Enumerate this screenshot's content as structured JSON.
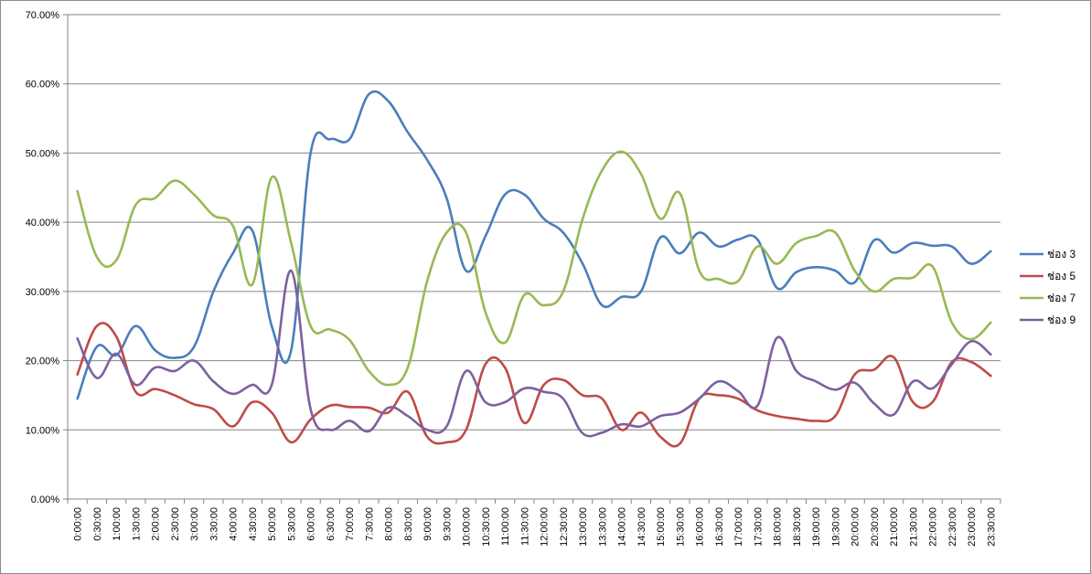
{
  "chart_data": {
    "type": "line",
    "title": "",
    "xlabel": "",
    "ylabel": "",
    "ylim": [
      0,
      70
    ],
    "y_ticks": [
      "0.00%",
      "10.00%",
      "20.00%",
      "30.00%",
      "40.00%",
      "50.00%",
      "60.00%",
      "70.00%"
    ],
    "grid": "horizontal",
    "legend_position": "right",
    "categories": [
      "0:00:00",
      "0:30:00",
      "1:00:00",
      "1:30:00",
      "2:00:00",
      "2:30:00",
      "3:00:00",
      "3:30:00",
      "4:00:00",
      "4:30:00",
      "5:00:00",
      "5:30:00",
      "6:00:00",
      "6:30:00",
      "7:00:00",
      "7:30:00",
      "8:00:00",
      "8:30:00",
      "9:00:00",
      "9:30:00",
      "10:00:00",
      "10:30:00",
      "11:00:00",
      "11:30:00",
      "12:00:00",
      "12:30:00",
      "13:00:00",
      "13:30:00",
      "14:00:00",
      "14:30:00",
      "15:00:00",
      "15:30:00",
      "16:00:00",
      "16:30:00",
      "17:00:00",
      "17:30:00",
      "18:00:00",
      "18:30:00",
      "19:00:00",
      "19:30:00",
      "20:00:00",
      "20:30:00",
      "21:00:00",
      "21:30:00",
      "22:00:00",
      "22:30:00",
      "23:00:00",
      "23:30:00"
    ],
    "series": [
      {
        "name": "ช่อง 3",
        "color": "#4a7ebb",
        "values": [
          14.5,
          22.0,
          20.8,
          25.0,
          21.5,
          20.4,
          22.0,
          30.0,
          35.5,
          38.8,
          25.0,
          21.5,
          50.0,
          52.0,
          52.0,
          58.5,
          57.5,
          53.0,
          49.0,
          43.5,
          33.0,
          38.0,
          44.0,
          44.0,
          40.5,
          38.5,
          34.0,
          28.0,
          29.2,
          30.0,
          37.8,
          35.5,
          38.5,
          36.5,
          37.5,
          37.5,
          30.5,
          32.8,
          33.5,
          33.0,
          31.3,
          37.4,
          35.6,
          37.0,
          36.6,
          36.5,
          34.0,
          35.8
        ]
      },
      {
        "name": "ช่อง 5",
        "color": "#be4b48",
        "values": [
          18.0,
          25.0,
          23.5,
          15.5,
          15.9,
          15.0,
          13.7,
          13.0,
          10.5,
          14.0,
          12.5,
          8.2,
          11.5,
          13.5,
          13.3,
          13.2,
          12.5,
          15.5,
          9.0,
          8.2,
          10.0,
          19.5,
          19.0,
          11.0,
          16.5,
          17.2,
          15.0,
          14.5,
          10.0,
          12.5,
          9.0,
          8.0,
          14.5,
          15.0,
          14.5,
          12.8,
          12.0,
          11.6,
          11.3,
          12.0,
          18.0,
          18.7,
          20.5,
          14.0,
          14.0,
          19.8,
          19.8,
          17.8
        ]
      },
      {
        "name": "ช่อง 7",
        "color": "#98b954",
        "values": [
          44.5,
          35.0,
          34.5,
          42.5,
          43.5,
          46.0,
          44.0,
          41.0,
          39.5,
          31.0,
          46.5,
          37.0,
          25.0,
          24.5,
          23.0,
          18.5,
          16.5,
          19.0,
          31.5,
          38.5,
          38.5,
          27.0,
          22.6,
          29.5,
          28.0,
          30.0,
          40.5,
          47.5,
          50.2,
          47.0,
          40.5,
          44.2,
          33.0,
          31.8,
          31.5,
          36.5,
          34.0,
          37.0,
          38.0,
          38.5,
          33.0,
          30.0,
          31.8,
          32.0,
          33.6,
          25.5,
          23.1,
          25.5
        ]
      },
      {
        "name": "ช่อง 9",
        "color": "#7d60a0",
        "values": [
          23.2,
          17.5,
          21.0,
          16.5,
          19.0,
          18.5,
          20.0,
          17.0,
          15.2,
          16.5,
          16.5,
          33.0,
          13.0,
          10.0,
          11.3,
          9.8,
          13.2,
          12.0,
          10.0,
          10.5,
          18.5,
          14.0,
          14.0,
          16.0,
          15.5,
          14.5,
          9.5,
          9.6,
          10.8,
          10.5,
          12.0,
          12.5,
          14.5,
          17.0,
          15.6,
          13.5,
          23.3,
          18.5,
          17.0,
          15.8,
          16.8,
          13.8,
          12.2,
          17.0,
          16.0,
          19.5,
          22.8,
          20.9
        ]
      }
    ]
  }
}
